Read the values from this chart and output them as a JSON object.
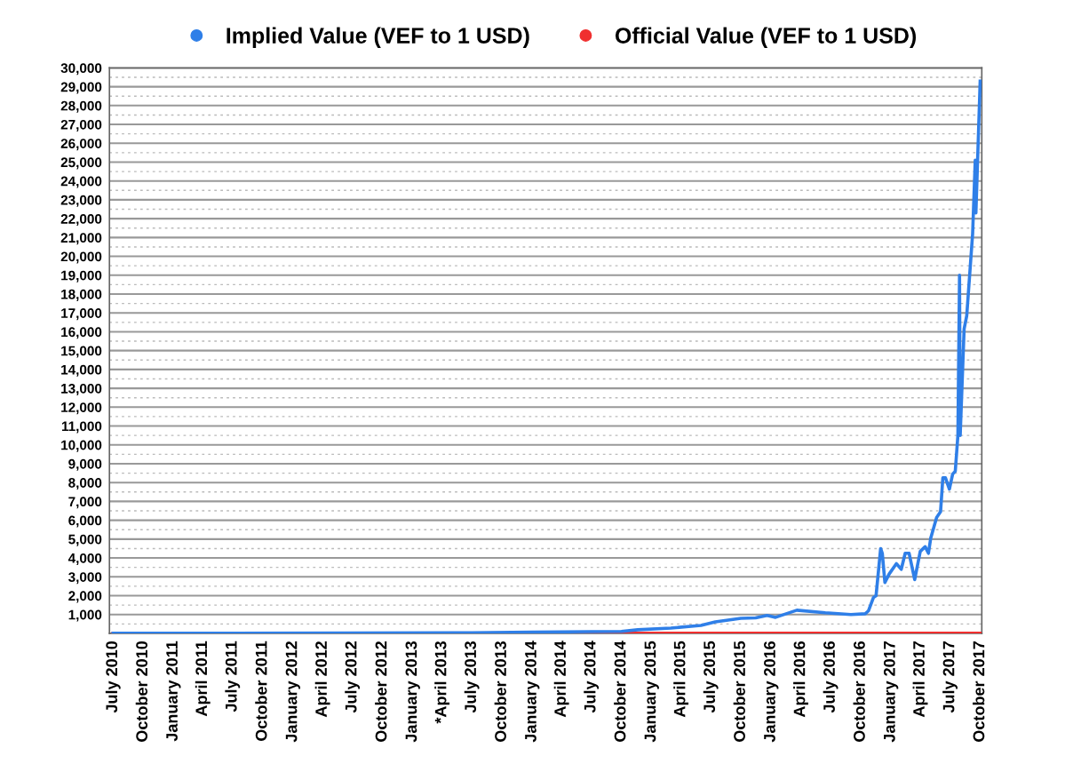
{
  "chart_data": {
    "type": "line",
    "series": [
      {
        "name": "Implied Value (VEF to 1 USD)",
        "color": "#2f7fe8",
        "x": [
          "2010-07-01",
          "2011-07-01",
          "2012-07-01",
          "2013-07-01",
          "2014-01-01",
          "2014-07-01",
          "2014-10-01",
          "2014-11-20",
          "2015-03-01",
          "2015-06-01",
          "2015-07-15",
          "2015-10-01",
          "2015-11-15",
          "2015-12-20",
          "2016-01-15",
          "2016-03-20",
          "2016-06-15",
          "2016-09-01",
          "2016-10-15",
          "2016-10-25",
          "2016-11-09",
          "2016-11-17",
          "2016-12-01",
          "2016-12-06",
          "2016-12-14",
          "2016-12-27",
          "2017-01-18",
          "2017-02-02",
          "2017-02-14",
          "2017-02-26",
          "2017-03-15",
          "2017-04-01",
          "2017-04-16",
          "2017-04-26",
          "2017-05-03",
          "2017-05-21",
          "2017-06-02",
          "2017-06-09",
          "2017-06-17",
          "2017-06-29",
          "2017-07-09",
          "2017-07-17",
          "2017-07-25",
          "2017-07-30",
          "2017-08-01",
          "2017-08-13",
          "2017-08-21",
          "2017-09-08",
          "2017-09-16",
          "2017-09-18",
          "2017-10-01"
        ],
        "values": [
          10,
          10,
          20,
          30,
          70,
          90,
          100,
          190,
          280,
          420,
          610,
          800,
          820,
          950,
          850,
          1230,
          1090,
          1000,
          1040,
          1200,
          1900,
          2000,
          4500,
          4250,
          2700,
          3150,
          3700,
          3400,
          4250,
          4250,
          2850,
          4350,
          4600,
          4250,
          5050,
          6150,
          6450,
          8250,
          8250,
          7650,
          8450,
          8600,
          10500,
          19000,
          10500,
          16150,
          16850,
          21200,
          25100,
          22300,
          29300
        ]
      },
      {
        "name": "Official Value (VEF to 1 USD)",
        "color": "#f03030",
        "x": [
          "2010-07-01",
          "2017-10-01"
        ],
        "values": [
          10,
          10
        ]
      }
    ],
    "xlim": [
      "2010-06-20",
      "2017-10-06"
    ],
    "xticks": [
      {
        "value": "2010-07-01",
        "label": "July 2010"
      },
      {
        "value": "2010-10-01",
        "label": "October 2010"
      },
      {
        "value": "2011-01-01",
        "label": "January 2011"
      },
      {
        "value": "2011-04-01",
        "label": "April 2011"
      },
      {
        "value": "2011-07-01",
        "label": "July 2011"
      },
      {
        "value": "2011-10-01",
        "label": "October 2011"
      },
      {
        "value": "2012-01-01",
        "label": "January 2012"
      },
      {
        "value": "2012-04-01",
        "label": "April 2012"
      },
      {
        "value": "2012-07-01",
        "label": "July 2012"
      },
      {
        "value": "2012-10-01",
        "label": "October 2012"
      },
      {
        "value": "2013-01-01",
        "label": "January 2013"
      },
      {
        "value": "2013-04-01",
        "label": "*April 2013"
      },
      {
        "value": "2013-07-01",
        "label": "July 2013"
      },
      {
        "value": "2013-10-01",
        "label": "October 2013"
      },
      {
        "value": "2014-01-01",
        "label": "January 2014"
      },
      {
        "value": "2014-04-01",
        "label": "April 2014"
      },
      {
        "value": "2014-07-01",
        "label": "July 2014"
      },
      {
        "value": "2014-10-01",
        "label": "October 2014"
      },
      {
        "value": "2015-01-01",
        "label": "January 2015"
      },
      {
        "value": "2015-04-01",
        "label": "April 2015"
      },
      {
        "value": "2015-07-01",
        "label": "July 2015"
      },
      {
        "value": "2015-10-01",
        "label": "October 2015"
      },
      {
        "value": "2016-01-01",
        "label": "January 2016"
      },
      {
        "value": "2016-04-01",
        "label": "April 2016"
      },
      {
        "value": "2016-07-01",
        "label": "July 2016"
      },
      {
        "value": "2016-10-01",
        "label": "October 2016"
      },
      {
        "value": "2017-01-01",
        "label": "January 2017"
      },
      {
        "value": "2017-04-01",
        "label": "April 2017"
      },
      {
        "value": "2017-07-01",
        "label": "July 2017"
      },
      {
        "value": "2017-10-01",
        "label": "October 2017"
      }
    ],
    "ylim": [
      0,
      30000
    ],
    "yticks": [
      {
        "value": 500,
        "label": null
      },
      {
        "value": 1000,
        "label": "1,000"
      },
      {
        "value": 1500,
        "label": null
      },
      {
        "value": 2000,
        "label": "2,000"
      },
      {
        "value": 2500,
        "label": null
      },
      {
        "value": 3000,
        "label": "3,000"
      },
      {
        "value": 3500,
        "label": null
      },
      {
        "value": 4000,
        "label": "4,000"
      },
      {
        "value": 4500,
        "label": null
      },
      {
        "value": 5000,
        "label": "5,000"
      },
      {
        "value": 5500,
        "label": null
      },
      {
        "value": 6000,
        "label": "6,000"
      },
      {
        "value": 6500,
        "label": null
      },
      {
        "value": 7000,
        "label": "7,000"
      },
      {
        "value": 7500,
        "label": null
      },
      {
        "value": 8000,
        "label": "8,000"
      },
      {
        "value": 8500,
        "label": null
      },
      {
        "value": 9000,
        "label": "9,000"
      },
      {
        "value": 9500,
        "label": null
      },
      {
        "value": 10000,
        "label": "10,000"
      },
      {
        "value": 10500,
        "label": null
      },
      {
        "value": 11000,
        "label": "11,000"
      },
      {
        "value": 11500,
        "label": null
      },
      {
        "value": 12000,
        "label": "12,000"
      },
      {
        "value": 12500,
        "label": null
      },
      {
        "value": 13000,
        "label": "13,000"
      },
      {
        "value": 13500,
        "label": null
      },
      {
        "value": 14000,
        "label": "14,000"
      },
      {
        "value": 14500,
        "label": null
      },
      {
        "value": 15000,
        "label": "15,000"
      },
      {
        "value": 15500,
        "label": null
      },
      {
        "value": 16000,
        "label": "16,000"
      },
      {
        "value": 16500,
        "label": null
      },
      {
        "value": 17000,
        "label": "17,000"
      },
      {
        "value": 17500,
        "label": null
      },
      {
        "value": 18000,
        "label": "18,000"
      },
      {
        "value": 18500,
        "label": null
      },
      {
        "value": 19000,
        "label": "19,000"
      },
      {
        "value": 19500,
        "label": null
      },
      {
        "value": 20000,
        "label": "20,000"
      },
      {
        "value": 20500,
        "label": null
      },
      {
        "value": 21000,
        "label": "21,000"
      },
      {
        "value": 21500,
        "label": null
      },
      {
        "value": 22000,
        "label": "22,000"
      },
      {
        "value": 22500,
        "label": null
      },
      {
        "value": 23000,
        "label": "23,000"
      },
      {
        "value": 23500,
        "label": null
      },
      {
        "value": 24000,
        "label": "24,000"
      },
      {
        "value": 24500,
        "label": null
      },
      {
        "value": 25000,
        "label": "25,000"
      },
      {
        "value": 25500,
        "label": null
      },
      {
        "value": 26000,
        "label": "26,000"
      },
      {
        "value": 26500,
        "label": null
      },
      {
        "value": 27000,
        "label": "27,000"
      },
      {
        "value": 27500,
        "label": null
      },
      {
        "value": 28000,
        "label": "28,000"
      },
      {
        "value": 28500,
        "label": null
      },
      {
        "value": 29000,
        "label": "29,000"
      },
      {
        "value": 29500,
        "label": null
      },
      {
        "value": 30000,
        "label": "30,000"
      }
    ],
    "grid": "y",
    "legend": "top",
    "marker": "none",
    "line_style": "solid"
  }
}
